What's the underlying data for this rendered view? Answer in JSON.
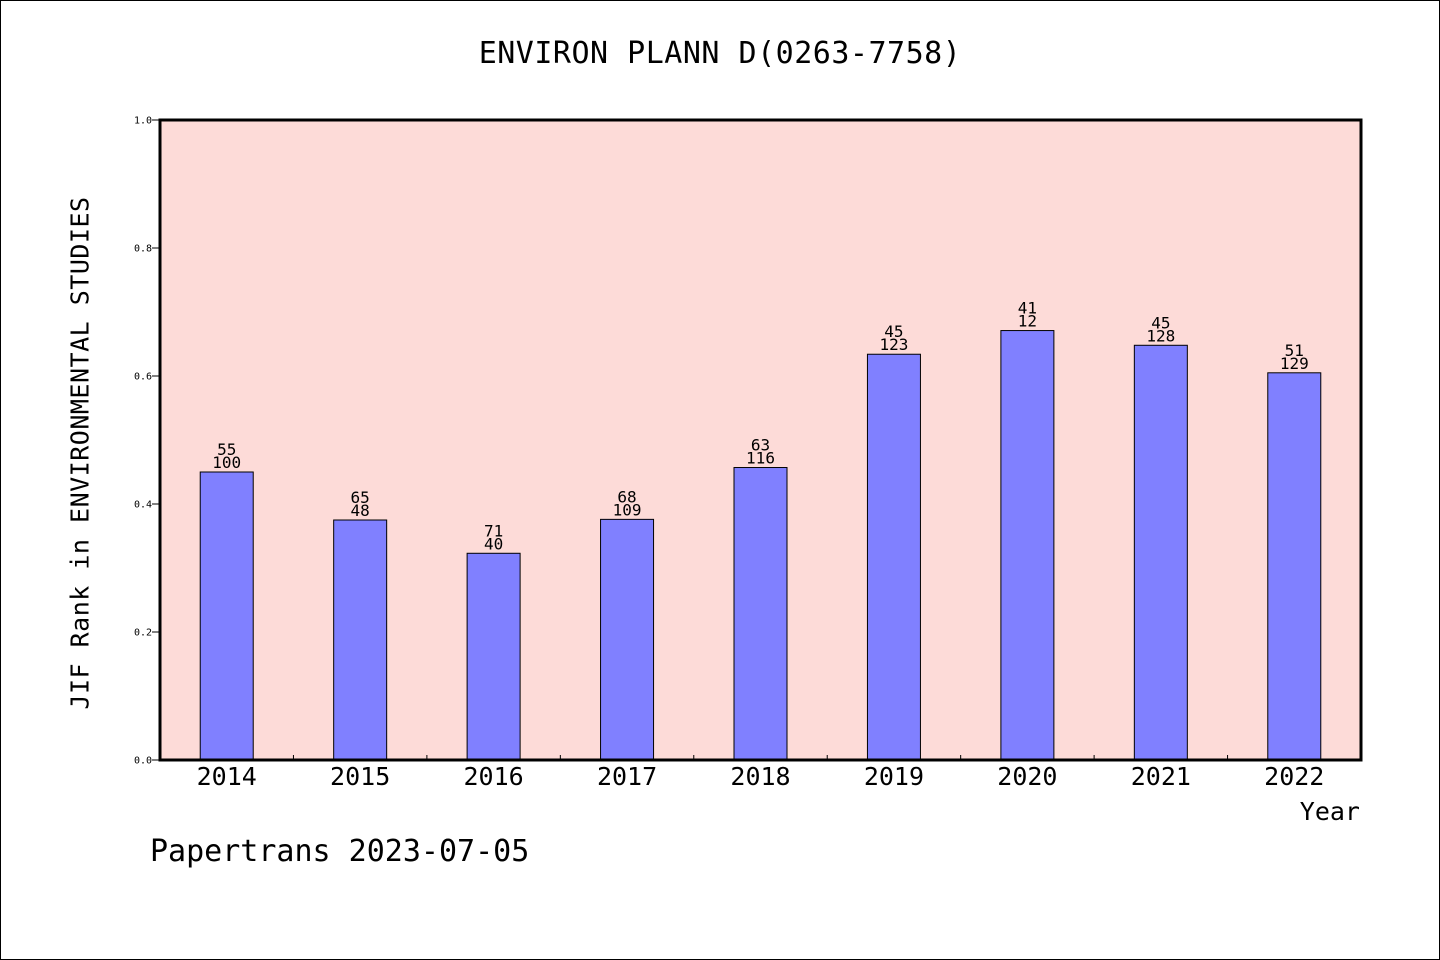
{
  "colors": {
    "plot_background": "#fddbd8",
    "bar_fill": "#8080ff",
    "bar_stroke": "#000000"
  },
  "footer": {
    "text": "Papertrans 2023-07-05"
  },
  "chart_data": {
    "type": "bar",
    "title": "ENVIRON PLANN D(0263-7758)",
    "xlabel": "Year",
    "ylabel": "JIF Rank in ENVIRONMENTAL STUDIES",
    "ylim": [
      0,
      1.0
    ],
    "yticks": [
      "0.0",
      "0.2",
      "0.4",
      "0.6",
      "0.8",
      "1.0"
    ],
    "grid": false,
    "categories": [
      "2014",
      "2015",
      "2016",
      "2017",
      "2018",
      "2019",
      "2020",
      "2021",
      "2022"
    ],
    "values": [
      0.45,
      0.375,
      0.323,
      0.376,
      0.457,
      0.634,
      0.671,
      0.648,
      0.605
    ],
    "labels_top": [
      "55",
      "65",
      "71",
      "68",
      "63",
      "45",
      "41",
      "45",
      "51"
    ],
    "labels_bottom": [
      "100",
      "48",
      "40",
      "109",
      "116",
      "123",
      "12",
      "128",
      "129"
    ]
  }
}
